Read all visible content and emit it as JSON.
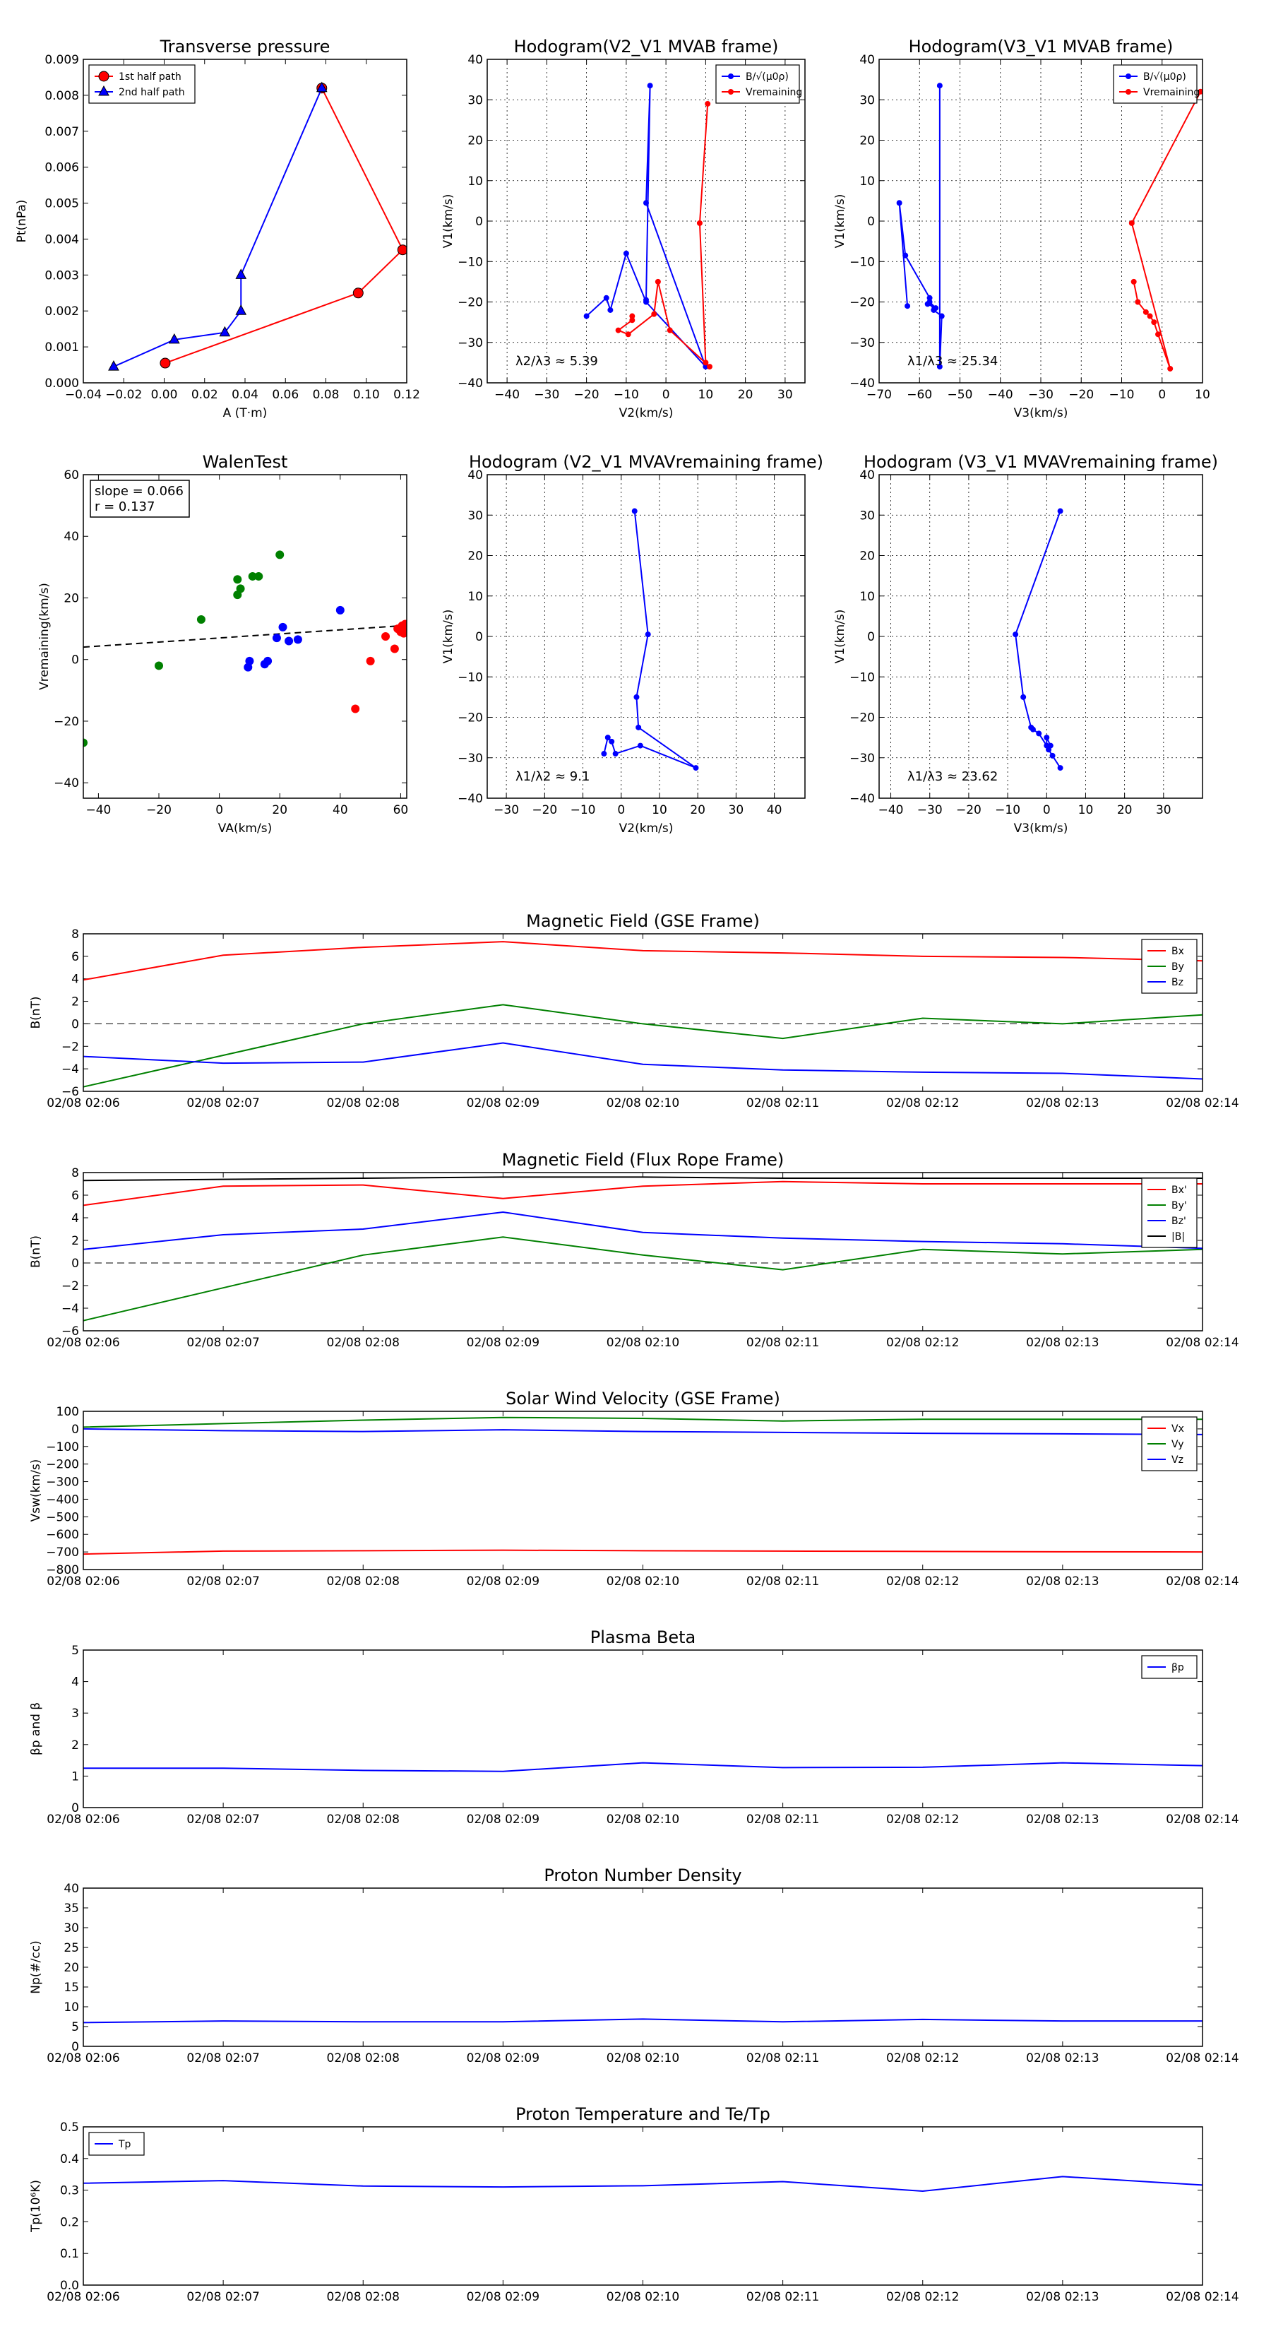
{
  "chart_data": [
    {
      "id": "transverse-pressure",
      "type": "line",
      "title": "Transverse pressure",
      "xlabel": "A (T·m)",
      "ylabel": "Pt(nPa)",
      "xlim": [
        -0.04,
        0.12
      ],
      "ylim": [
        0,
        0.009
      ],
      "xticks": [
        -0.04,
        -0.02,
        0.0,
        0.02,
        0.04,
        0.06,
        0.08,
        0.1,
        0.12
      ],
      "yticks": [
        0.0,
        0.001,
        0.002,
        0.003,
        0.004,
        0.005,
        0.006,
        0.007,
        0.008,
        0.009
      ],
      "xtick_labels": [
        "−0.04",
        "−0.02",
        "0.00",
        "0.02",
        "0.04",
        "0.06",
        "0.08",
        "0.10",
        "0.12"
      ],
      "ytick_labels": [
        "0.000",
        "0.001",
        "0.002",
        "0.003",
        "0.004",
        "0.005",
        "0.006",
        "0.007",
        "0.008",
        "0.009"
      ],
      "grid": false,
      "legend": "top-left",
      "series": [
        {
          "name": "1st half path",
          "color": "#ff0000",
          "marker": "circle",
          "x": [
            0.0005,
            0.096,
            0.118,
            0.078
          ],
          "y": [
            0.00055,
            0.0025,
            0.0037,
            0.0082
          ]
        },
        {
          "name": "2nd half path",
          "color": "#0000ff",
          "marker": "triangle",
          "x": [
            0.078,
            0.038,
            0.038,
            0.03,
            0.005,
            -0.025
          ],
          "y": [
            0.0082,
            0.003,
            0.002,
            0.0014,
            0.0012,
            0.00045
          ]
        }
      ]
    },
    {
      "id": "hodogram-v2v1-mvab",
      "type": "line",
      "title": "Hodogram(V2_V1 MVAB frame)",
      "xlabel": "V2(km/s)",
      "ylabel": "V1(km/s)",
      "xlim": [
        -45,
        35
      ],
      "ylim": [
        -40,
        40
      ],
      "xticks": [
        -40,
        -30,
        -20,
        -10,
        0,
        10,
        20,
        30
      ],
      "yticks": [
        -40,
        -30,
        -20,
        -10,
        0,
        10,
        20,
        30,
        40
      ],
      "xtick_labels": [
        "−40",
        "−30",
        "−20",
        "−10",
        "0",
        "10",
        "20",
        "30"
      ],
      "ytick_labels": [
        "−40",
        "−30",
        "−20",
        "−10",
        "0",
        "10",
        "20",
        "30",
        "40"
      ],
      "grid": true,
      "legend": "top-right",
      "annotation": "λ2/λ3 ≈ 5.39",
      "series": [
        {
          "name": "B/√(μ0ρ)",
          "color": "#0000ff",
          "marker": "dot",
          "x": [
            -20,
            -15,
            -14,
            -10,
            -5,
            10,
            -5,
            -4,
            -5
          ],
          "y": [
            -23.5,
            -19,
            -22,
            -8,
            -20,
            -36,
            4.5,
            33.5,
            -19.5
          ]
        },
        {
          "name": "Vremaining",
          "color": "#ff0000",
          "marker": "dot",
          "x": [
            -8.5,
            -8.5,
            -12,
            -9.5,
            -3,
            -2,
            1,
            11,
            10,
            8.5,
            10.5
          ],
          "y": [
            -23.5,
            -24.5,
            -27,
            -28,
            -23,
            -15,
            -27,
            -36,
            -35,
            -0.5,
            29
          ]
        }
      ]
    },
    {
      "id": "hodogram-v3v1-mvab",
      "type": "line",
      "title": "Hodogram(V3_V1 MVAB frame)",
      "xlabel": "V3(km/s)",
      "ylabel": "V1(km/s)",
      "xlim": [
        -70,
        10
      ],
      "ylim": [
        -40,
        40
      ],
      "xticks": [
        -70,
        -60,
        -50,
        -40,
        -30,
        -20,
        -10,
        0,
        10
      ],
      "yticks": [
        -40,
        -30,
        -20,
        -10,
        0,
        10,
        20,
        30,
        40
      ],
      "xtick_labels": [
        "−70",
        "−60",
        "−50",
        "−40",
        "−30",
        "−20",
        "−10",
        "0",
        "10"
      ],
      "ytick_labels": [
        "−40",
        "−30",
        "−20",
        "−10",
        "0",
        "10",
        "20",
        "30",
        "40"
      ],
      "grid": true,
      "legend": "top-right",
      "annotation": "λ1/λ3 ≈ 25.34",
      "series": [
        {
          "name": "B/√(μ0ρ)",
          "color": "#0000ff",
          "marker": "dot",
          "x": [
            -63,
            -65,
            -63.5,
            -57.5,
            -58,
            -56,
            -57.5,
            -56.5,
            -54.5,
            -55,
            -55
          ],
          "y": [
            -21,
            4.5,
            -8.5,
            -19,
            -20.5,
            -21.5,
            -20,
            -22,
            -23.5,
            -36,
            33.5
          ]
        },
        {
          "name": "Vremaining",
          "color": "#ff0000",
          "marker": "dot",
          "x": [
            -7,
            -6,
            -4,
            -3,
            -2,
            -1,
            2,
            -7.5,
            9.5
          ],
          "y": [
            -15,
            -20,
            -22.5,
            -23.5,
            -25,
            -28,
            -36.5,
            -0.5,
            32
          ]
        }
      ]
    },
    {
      "id": "walen-test",
      "type": "scatter",
      "title": "WalenTest",
      "xlabel": "VA(km/s)",
      "ylabel": "Vremaining(km/s)",
      "xlim": [
        -45,
        62
      ],
      "ylim": [
        -45,
        60
      ],
      "xticks": [
        -40,
        -20,
        0,
        20,
        40,
        60
      ],
      "yticks": [
        -40,
        -20,
        0,
        20,
        40,
        60
      ],
      "xtick_labels": [
        "−40",
        "−20",
        "0",
        "20",
        "40",
        "60"
      ],
      "ytick_labels": [
        "−40",
        "−20",
        "0",
        "20",
        "40",
        "60"
      ],
      "grid": false,
      "annotation_lines": [
        "slope = 0.066",
        "r = 0.137"
      ],
      "fit_line": {
        "slope": 0.066,
        "intercept": 7.0,
        "color": "#000000",
        "dash": true
      },
      "series": [
        {
          "color": "#008000",
          "x": [
            -45,
            -20,
            -6,
            6,
            6,
            7,
            11,
            13,
            20
          ],
          "y": [
            -27,
            -2,
            13,
            26,
            21,
            23,
            27,
            27,
            34
          ]
        },
        {
          "color": "#0000ff",
          "x": [
            9.5,
            10,
            15,
            16,
            19,
            21,
            23,
            26,
            40
          ],
          "y": [
            -2.5,
            -0.5,
            -1.5,
            -0.5,
            7,
            10.5,
            6,
            6.5,
            16
          ]
        },
        {
          "color": "#ff0000",
          "x": [
            45,
            50,
            55,
            58,
            59,
            60,
            60.5,
            61,
            61.5,
            61.5
          ],
          "y": [
            -16,
            -0.5,
            7.5,
            3.5,
            10,
            9,
            11,
            8.5,
            10.5,
            11.5
          ]
        }
      ]
    },
    {
      "id": "hodogram-v2v1-mvav",
      "type": "line",
      "title": "Hodogram (V2_V1 MVAVremaining frame)",
      "xlabel": "V2(km/s)",
      "ylabel": "V1(km/s)",
      "xlim": [
        -35,
        48
      ],
      "ylim": [
        -40,
        40
      ],
      "xticks": [
        -30,
        -20,
        -10,
        0,
        10,
        20,
        30,
        40
      ],
      "yticks": [
        -40,
        -30,
        -20,
        -10,
        0,
        10,
        20,
        30,
        40
      ],
      "xtick_labels": [
        "−30",
        "−20",
        "−10",
        "0",
        "10",
        "20",
        "30",
        "40"
      ],
      "ytick_labels": [
        "−40",
        "−30",
        "−20",
        "−10",
        "0",
        "10",
        "20",
        "30",
        "40"
      ],
      "grid": true,
      "annotation": "λ1/λ2 ≈ 9.1",
      "series": [
        {
          "color": "#0000ff",
          "marker": "dot",
          "x": [
            -4.5,
            -3.5,
            -2.5,
            -1.5,
            5,
            19.5,
            4.5,
            4,
            7,
            3.5
          ],
          "y": [
            -29,
            -25,
            -26,
            -29,
            -27,
            -32.5,
            -22.5,
            -15,
            0.5,
            31
          ]
        }
      ]
    },
    {
      "id": "hodogram-v3v1-mvav",
      "type": "line",
      "title": "Hodogram (V3_V1 MVAVremaining frame)",
      "xlabel": "V3(km/s)",
      "ylabel": "V1(km/s)",
      "xlim": [
        -43,
        40
      ],
      "ylim": [
        -40,
        40
      ],
      "xticks": [
        -40,
        -30,
        -20,
        -10,
        0,
        10,
        20,
        30
      ],
      "yticks": [
        -40,
        -30,
        -20,
        -10,
        0,
        10,
        20,
        30,
        40
      ],
      "xtick_labels": [
        "−40",
        "−30",
        "−20",
        "−10",
        "0",
        "10",
        "20",
        "30"
      ],
      "ytick_labels": [
        "−40",
        "−30",
        "−20",
        "−10",
        "0",
        "10",
        "20",
        "30",
        "40"
      ],
      "grid": true,
      "annotation": "λ1/λ3 ≈ 23.62",
      "series": [
        {
          "color": "#0000ff",
          "marker": "dot",
          "x": [
            3.5,
            1.5,
            0.5,
            1,
            0,
            0,
            -2,
            -3.5,
            -4,
            -6,
            -8,
            3.5
          ],
          "y": [
            -32.5,
            -29.5,
            -28,
            -27,
            -25,
            -27,
            -24,
            -23,
            -22.5,
            -15,
            0.5,
            31
          ]
        }
      ]
    },
    {
      "id": "magnetic-field-gse",
      "type": "line",
      "title": "Magnetic Field (GSE Frame)",
      "ylabel": "B(nT)",
      "ylim": [
        -6,
        8
      ],
      "yticks": [
        -6,
        -4,
        -2,
        0,
        2,
        4,
        6,
        8
      ],
      "ytick_labels": [
        "−6",
        "−4",
        "−2",
        "0",
        "2",
        "4",
        "6",
        "8"
      ],
      "x": [
        "02/08 02:06",
        "02/08 02:07",
        "02/08 02:08",
        "02/08 02:09",
        "02/08 02:10",
        "02/08 02:11",
        "02/08 02:12",
        "02/08 02:13",
        "02/08 02:14"
      ],
      "zero_line": true,
      "legend": "top-right",
      "series": [
        {
          "name": "Bx",
          "color": "#ff0000",
          "values": [
            3.9,
            6.1,
            6.8,
            7.3,
            6.5,
            6.3,
            6.0,
            5.9,
            5.6
          ]
        },
        {
          "name": "By",
          "color": "#008000",
          "values": [
            -5.6,
            -2.8,
            0,
            1.7,
            0,
            -1.3,
            0.5,
            0,
            0.8
          ]
        },
        {
          "name": "Bz",
          "color": "#0000ff",
          "values": [
            -2.9,
            -3.5,
            -3.4,
            -1.7,
            -3.6,
            -4.1,
            -4.3,
            -4.4,
            -4.9
          ]
        }
      ]
    },
    {
      "id": "magnetic-field-flux-rope",
      "type": "line",
      "title": "Magnetic Field (Flux Rope Frame)",
      "ylabel": "B(nT)",
      "ylim": [
        -6,
        8
      ],
      "yticks": [
        -6,
        -4,
        -2,
        0,
        2,
        4,
        6,
        8
      ],
      "ytick_labels": [
        "−6",
        "−4",
        "−2",
        "0",
        "2",
        "4",
        "6",
        "8"
      ],
      "x": [
        "02/08 02:06",
        "02/08 02:07",
        "02/08 02:08",
        "02/08 02:09",
        "02/08 02:10",
        "02/08 02:11",
        "02/08 02:12",
        "02/08 02:13",
        "02/08 02:14"
      ],
      "zero_line": true,
      "legend": "top-right",
      "series": [
        {
          "name": "Bx'",
          "color": "#ff0000",
          "values": [
            5.1,
            6.8,
            6.9,
            5.7,
            6.8,
            7.2,
            7.0,
            7.0,
            7.0
          ]
        },
        {
          "name": "By'",
          "color": "#008000",
          "values": [
            -5.1,
            -2.2,
            0.7,
            2.3,
            0.7,
            -0.6,
            1.2,
            0.8,
            1.2
          ]
        },
        {
          "name": "Bz'",
          "color": "#0000ff",
          "values": [
            1.2,
            2.5,
            3.0,
            4.5,
            2.7,
            2.2,
            1.9,
            1.7,
            1.3
          ]
        },
        {
          "name": "|B|",
          "color": "#000000",
          "values": [
            7.3,
            7.4,
            7.5,
            7.6,
            7.6,
            7.5,
            7.5,
            7.5,
            7.5
          ]
        }
      ]
    },
    {
      "id": "solar-wind-velocity",
      "type": "line",
      "title": "Solar Wind Velocity (GSE Frame)",
      "ylabel": "Vsw(km/s)",
      "ylim": [
        -800,
        100
      ],
      "yticks": [
        -800,
        -700,
        -600,
        -500,
        -400,
        -300,
        -200,
        -100,
        0,
        100
      ],
      "ytick_labels": [
        "−800",
        "−700",
        "−600",
        "−500",
        "−400",
        "−300",
        "−200",
        "−100",
        "0",
        "100"
      ],
      "x": [
        "02/08 02:06",
        "02/08 02:07",
        "02/08 02:08",
        "02/08 02:09",
        "02/08 02:10",
        "02/08 02:11",
        "02/08 02:12",
        "02/08 02:13",
        "02/08 02:14"
      ],
      "legend": "top-right",
      "series": [
        {
          "name": "Vx",
          "color": "#ff0000",
          "values": [
            -712,
            -695,
            -693,
            -690,
            -693,
            -695,
            -697,
            -699,
            -700
          ]
        },
        {
          "name": "Vy",
          "color": "#008000",
          "values": [
            10,
            30,
            50,
            65,
            60,
            45,
            55,
            55,
            55
          ]
        },
        {
          "name": "Vz",
          "color": "#0000ff",
          "values": [
            0,
            -10,
            -15,
            -5,
            -15,
            -20,
            -25,
            -28,
            -32
          ]
        }
      ]
    },
    {
      "id": "plasma-beta",
      "type": "line",
      "title": "Plasma Beta",
      "ylabel": "βp and β",
      "ylim": [
        0,
        5
      ],
      "yticks": [
        0,
        1,
        2,
        3,
        4,
        5
      ],
      "ytick_labels": [
        "0",
        "1",
        "2",
        "3",
        "4",
        "5"
      ],
      "x": [
        "02/08 02:06",
        "02/08 02:07",
        "02/08 02:08",
        "02/08 02:09",
        "02/08 02:10",
        "02/08 02:11",
        "02/08 02:12",
        "02/08 02:13",
        "02/08 02:14"
      ],
      "legend": "top-right",
      "series": [
        {
          "name": "βp",
          "color": "#0000ff",
          "values": [
            1.25,
            1.25,
            1.18,
            1.15,
            1.42,
            1.27,
            1.28,
            1.42,
            1.33
          ]
        }
      ]
    },
    {
      "id": "proton-number-density",
      "type": "line",
      "title": "Proton Number Density",
      "ylabel": "Np(#/cc)",
      "ylim": [
        0,
        40
      ],
      "yticks": [
        0,
        5,
        10,
        15,
        20,
        25,
        30,
        35,
        40
      ],
      "ytick_labels": [
        "0",
        "5",
        "10",
        "15",
        "20",
        "25",
        "30",
        "35",
        "40"
      ],
      "x": [
        "02/08 02:06",
        "02/08 02:07",
        "02/08 02:08",
        "02/08 02:09",
        "02/08 02:10",
        "02/08 02:11",
        "02/08 02:12",
        "02/08 02:13",
        "02/08 02:14"
      ],
      "series": [
        {
          "color": "#0000ff",
          "values": [
            6.0,
            6.4,
            6.2,
            6.2,
            6.9,
            6.2,
            6.8,
            6.4,
            6.4
          ]
        }
      ]
    },
    {
      "id": "proton-temperature",
      "type": "line",
      "title": "Proton Temperature and Te/Tp",
      "ylabel": "Tp(10⁶K)",
      "ylim": [
        0,
        0.5
      ],
      "yticks": [
        0.0,
        0.1,
        0.2,
        0.3,
        0.4,
        0.5
      ],
      "ytick_labels": [
        "0.0",
        "0.1",
        "0.2",
        "0.3",
        "0.4",
        "0.5"
      ],
      "x": [
        "02/08 02:06",
        "02/08 02:07",
        "02/08 02:08",
        "02/08 02:09",
        "02/08 02:10",
        "02/08 02:11",
        "02/08 02:12",
        "02/08 02:13",
        "02/08 02:14"
      ],
      "legend": "top-left",
      "series": [
        {
          "name": "Tp",
          "color": "#0000ff",
          "values": [
            0.322,
            0.33,
            0.313,
            0.31,
            0.314,
            0.327,
            0.297,
            0.343,
            0.316
          ]
        }
      ]
    }
  ]
}
